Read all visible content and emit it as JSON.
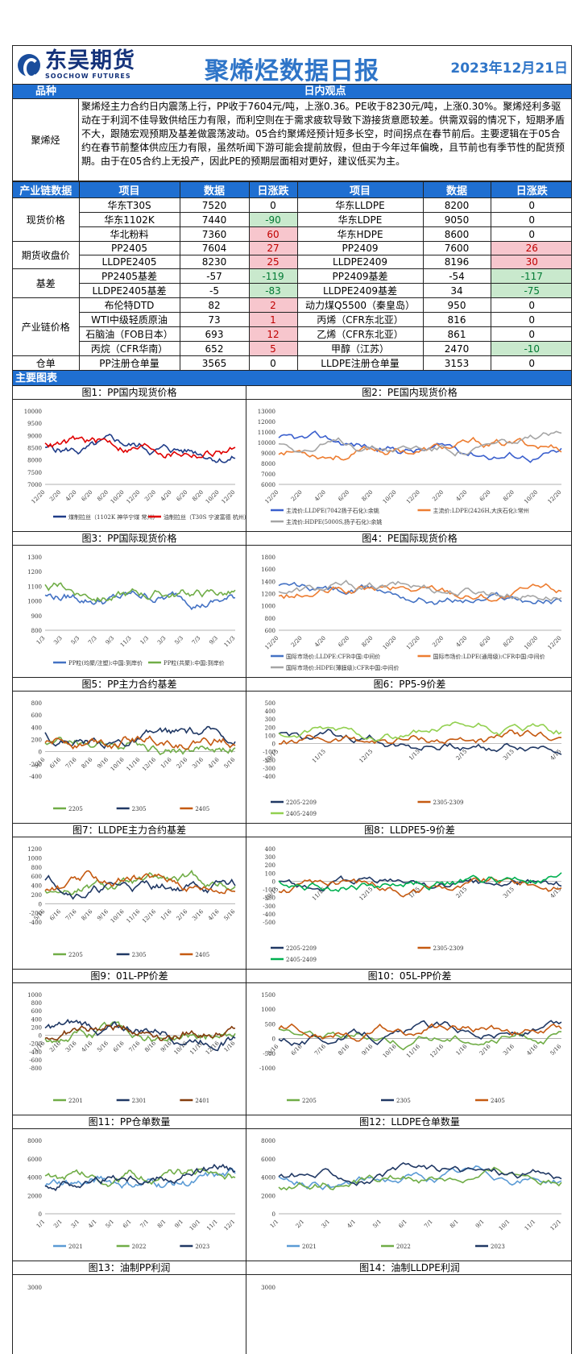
{
  "header": {
    "logo_cn": "东吴期货",
    "logo_en": "SOOCHOW FUTURES",
    "title": "聚烯烃数据日报",
    "date": "2023年12月21日"
  },
  "view_bar": {
    "col1": "品种",
    "col2": "日内观点"
  },
  "view": {
    "label": "聚烯烃",
    "text": "聚烯烃主力合约日内震荡上行，PP收于7604元/吨，上涨0.36。PE收于8230元/吨，上涨0.30%。聚烯烃利多驱动在于利润不佳导致供给压力有限，而利空则在于需求疲软导致下游接货意愿较差。供需双弱的情况下，短期矛盾不大，跟随宏观预期及基差做震荡波动。05合约聚烯烃预计短多长空，时间拐点在春节前后。主要逻辑在于05合约在春节前整体供应压力有限，虽然听闻下游可能会提前放假，但由于今年过年偏晚，且节前也有季节性的配货预期。由于在05合约上无投产，因此PE的预期层面相对更好，建议低买为主。"
  },
  "table": {
    "headers": [
      "产业链数据",
      "项目",
      "数据",
      "日涨跌",
      "项目",
      "数据",
      "日涨跌"
    ],
    "groups": [
      {
        "name": "现货价格",
        "rows": [
          [
            "华东T30S",
            "7520",
            "0",
            "华东LLDPE",
            "8200",
            "0"
          ],
          [
            "华东1102K",
            "7440",
            "-90",
            "华东LDPE",
            "9050",
            "0"
          ],
          [
            "华北粉料",
            "7360",
            "60",
            "华东HDPE",
            "8600",
            "0"
          ]
        ]
      },
      {
        "name": "期货收盘价",
        "rows": [
          [
            "PP2405",
            "7604",
            "27",
            "PP2409",
            "7600",
            "26"
          ],
          [
            "LLDPE2405",
            "8230",
            "25",
            "LLDPE2409",
            "8196",
            "30"
          ]
        ]
      },
      {
        "name": "基差",
        "rows": [
          [
            "PP2405基差",
            "-57",
            "-119",
            "PP2409基差",
            "-54",
            "-117"
          ],
          [
            "LLDPE2405基差",
            "-5",
            "-83",
            "LLDPE2409基差",
            "34",
            "-75"
          ]
        ]
      },
      {
        "name": "产业链价格",
        "rows": [
          [
            "布伦特DTD",
            "82",
            "2",
            "动力煤Q5500（秦皇岛）",
            "950",
            "0"
          ],
          [
            "WTI中级轻质原油",
            "73",
            "1",
            "丙烯（CFR东北亚）",
            "816",
            "0"
          ],
          [
            "石脑油（FOB日本）",
            "693",
            "12",
            "乙烯（CFR东北亚）",
            "861",
            "0"
          ],
          [
            "丙烷（CFR华南）",
            "652",
            "5",
            "甲醇（江苏）",
            "2470",
            "-10"
          ]
        ]
      },
      {
        "name": "仓单",
        "rows": [
          [
            "PP注册仓单量",
            "3565",
            "0",
            "LLDPE注册仓单量",
            "3153",
            "0"
          ]
        ]
      }
    ]
  },
  "section_title": "主要图表",
  "charts": [
    {
      "title": "图1：PP国内现货价格",
      "type": "line",
      "yticks": [
        "10000",
        "9500",
        "9000",
        "8500",
        "8000",
        "7500",
        "7000"
      ],
      "ylim": [
        7000,
        10000
      ],
      "xticks": [
        "12/20",
        "2/20",
        "4/20",
        "6/20",
        "8/20",
        "10/20",
        "12/20",
        "2/20",
        "4/20",
        "6/20",
        "8/20",
        "10/20",
        "12/20"
      ],
      "series": [
        {
          "name": "煤制拉丝（1102K 神华宁煤 常州）",
          "color": "#1f3c88"
        },
        {
          "name": "油制拉丝（T30S 宁波富德 杭州）",
          "color": "#e00000"
        }
      ]
    },
    {
      "title": "图2：PE国内现货价格",
      "type": "line",
      "yticks": [
        "13000",
        "12000",
        "11000",
        "10000",
        "9000",
        "8000",
        "7000",
        "6000"
      ],
      "ylim": [
        6000,
        13000
      ],
      "xticks": [
        "12/20",
        "2/20",
        "4/20",
        "6/20",
        "8/20",
        "10/20",
        "12/20",
        "2/20",
        "4/20",
        "6/20",
        "8/20",
        "10/20",
        "12/20"
      ],
      "series": [
        {
          "name": "主流价:LLDPE(7042扬子石化):余姚",
          "color": "#3a5fcd"
        },
        {
          "name": "主流价:LDPE(2426H,大庆石化):常州",
          "color": "#ed7d31"
        },
        {
          "name": "主流价:HDPE(5000S,扬子石化):余姚",
          "color": "#a5a5a5"
        }
      ]
    },
    {
      "title": "图3：PP国际现货价格",
      "type": "line",
      "yticks": [
        "1300",
        "1200",
        "1100",
        "1000",
        "900",
        "800"
      ],
      "ylim": [
        800,
        1300
      ],
      "xticks": [
        "1/3",
        "3/3",
        "5/3",
        "7/3",
        "9/3",
        "11/3",
        "1/3",
        "3/3",
        "5/3",
        "7/3",
        "9/3",
        "11/3"
      ],
      "series": [
        {
          "name": "PP粒(均聚/注塑):中国:到岸价",
          "color": "#4472c4"
        },
        {
          "name": "PP粒(共聚):中国:到岸价",
          "color": "#70ad47"
        }
      ]
    },
    {
      "title": "图4：PE国际现货价格",
      "type": "line",
      "yticks": [
        "1800",
        "1600",
        "1400",
        "1200",
        "1000",
        "800",
        "600"
      ],
      "ylim": [
        600,
        1800
      ],
      "xticks": [
        "12/20",
        "2/20",
        "4/20",
        "6/20",
        "8/20",
        "10/20",
        "12/20",
        "2/20",
        "4/20",
        "6/20",
        "8/20",
        "10/20",
        "12/20"
      ],
      "series": [
        {
          "name": "国际市场价:LLDPE:CFR中国:中间价",
          "color": "#4472c4"
        },
        {
          "name": "国际市场价:LDPE(通用级):CFR中国:中间价",
          "color": "#ed7d31"
        },
        {
          "name": "国际市场价:HDPE(薄膜级):CFR中国:中间价",
          "color": "#a5a5a5"
        }
      ]
    },
    {
      "title": "图5：PP主力合约基差",
      "type": "line",
      "yticks": [
        "800",
        "600",
        "400",
        "200",
        "0",
        "-200",
        "-400"
      ],
      "ylim": [
        -400,
        800
      ],
      "xticks": [
        "5/16",
        "6/16",
        "7/16",
        "8/16",
        "9/16",
        "10/16",
        "11/16",
        "12/16",
        "1/16",
        "2/16",
        "3/16",
        "4/16",
        "5/16"
      ],
      "series": [
        {
          "name": "2205",
          "color": "#70ad47"
        },
        {
          "name": "2305",
          "color": "#203864"
        },
        {
          "name": "2405",
          "color": "#c55a11"
        }
      ]
    },
    {
      "title": "图6：PP5-9价差",
      "type": "line",
      "yticks": [
        "500",
        "400",
        "300",
        "200",
        "100",
        "0",
        "-100",
        "-200",
        "-300",
        "-400"
      ],
      "ylim": [
        -400,
        500
      ],
      "xticks": [
        "10/15",
        "11/15",
        "12/15",
        "1/15",
        "2/15",
        "3/15",
        "4/15"
      ],
      "series": [
        {
          "name": "2205-2209",
          "color": "#203864"
        },
        {
          "name": "2305-2309",
          "color": "#c55a11"
        },
        {
          "name": "2405-2409",
          "color": "#92d050"
        }
      ]
    },
    {
      "title": "图7：LLDPE主力合约基差",
      "type": "line",
      "yticks": [
        "1200",
        "1000",
        "800",
        "600",
        "400",
        "200",
        "0",
        "-200",
        "-400"
      ],
      "ylim": [
        -400,
        1200
      ],
      "xticks": [
        "5/16",
        "6/16",
        "7/16",
        "8/16",
        "9/16",
        "10/16",
        "11/16",
        "12/16",
        "1/16",
        "2/16",
        "3/16",
        "4/16",
        "5/16"
      ],
      "series": [
        {
          "name": "2205",
          "color": "#70ad47"
        },
        {
          "name": "2305",
          "color": "#203864"
        },
        {
          "name": "2405",
          "color": "#c55a11"
        }
      ]
    },
    {
      "title": "图8：LLDPE5-9价差",
      "type": "line",
      "yticks": [
        "400",
        "300",
        "200",
        "100",
        "0",
        "-100",
        "-200",
        "-300",
        "-400",
        "-500"
      ],
      "ylim": [
        -500,
        400
      ],
      "xticks": [
        "10/15",
        "11/15",
        "12/15",
        "1/15",
        "2/15",
        "3/15",
        "4/15"
      ],
      "series": [
        {
          "name": "2205-2209",
          "color": "#203864"
        },
        {
          "name": "2305-2309",
          "color": "#c55a11"
        },
        {
          "name": "2405-2409",
          "color": "#00b050"
        }
      ]
    },
    {
      "title": "图9：01L-PP价差",
      "type": "line",
      "yticks": [
        "1000",
        "800",
        "600",
        "400",
        "200",
        "0",
        "-200",
        "-400",
        "-600",
        "-800"
      ],
      "ylim": [
        -800,
        1000
      ],
      "xticks": [
        "1/16",
        "2/16",
        "3/16",
        "4/16",
        "5/16",
        "6/16",
        "7/16",
        "8/16",
        "9/16",
        "10/16",
        "11/16",
        "12/16",
        "1/16"
      ],
      "series": [
        {
          "name": "2201",
          "color": "#70ad47"
        },
        {
          "name": "2301",
          "color": "#203864"
        },
        {
          "name": "2401",
          "color": "#843c0c"
        }
      ]
    },
    {
      "title": "图10：05L-PP价差",
      "type": "line",
      "yticks": [
        "1500",
        "1000",
        "500",
        "0",
        "-500",
        "-1000"
      ],
      "ylim": [
        -1000,
        1500
      ],
      "xticks": [
        "5/16",
        "6/16",
        "7/16",
        "8/16",
        "9/16",
        "10/16",
        "11/16",
        "12/16",
        "1/16",
        "2/16",
        "3/16",
        "4/16",
        "5/16"
      ],
      "series": [
        {
          "name": "2205",
          "color": "#70ad47"
        },
        {
          "name": "2305",
          "color": "#203864"
        },
        {
          "name": "2405",
          "color": "#c55a11"
        }
      ]
    },
    {
      "title": "图11：PP仓单数量",
      "type": "line",
      "yticks": [
        "8000",
        "6000",
        "4000",
        "2000",
        "0"
      ],
      "ylim": [
        0,
        8000
      ],
      "xticks": [
        "1/1",
        "2/1",
        "3/1",
        "4/1",
        "5/1",
        "6/1",
        "7/1",
        "8/1",
        "9/1",
        "10/1",
        "11/1",
        "12/1"
      ],
      "series": [
        {
          "name": "2021",
          "color": "#5b9bd5"
        },
        {
          "name": "2022",
          "color": "#70ad47"
        },
        {
          "name": "2023",
          "color": "#203864"
        }
      ]
    },
    {
      "title": "图12：LLDPE仓单数量",
      "type": "line",
      "yticks": [
        "8000",
        "6000",
        "4000",
        "2000",
        "0"
      ],
      "ylim": [
        0,
        8000
      ],
      "xticks": [
        "1/1",
        "2/1",
        "3/1",
        "4/1",
        "5/1",
        "6/1",
        "7/1",
        "8/1",
        "9/1",
        "10/1",
        "11/1",
        "12/1"
      ],
      "series": [
        {
          "name": "2021",
          "color": "#5b9bd5"
        },
        {
          "name": "2022",
          "color": "#70ad47"
        },
        {
          "name": "2023",
          "color": "#203864"
        }
      ]
    },
    {
      "title": "图13：油制PP利润",
      "type": "line",
      "yticks": [
        "3000"
      ],
      "ylim": [
        0,
        3000
      ],
      "xticks": [],
      "series": []
    },
    {
      "title": "图14：油制LLDPE利润",
      "type": "line",
      "yticks": [
        "3000"
      ],
      "ylim": [
        0,
        3000
      ],
      "xticks": [],
      "series": []
    }
  ]
}
